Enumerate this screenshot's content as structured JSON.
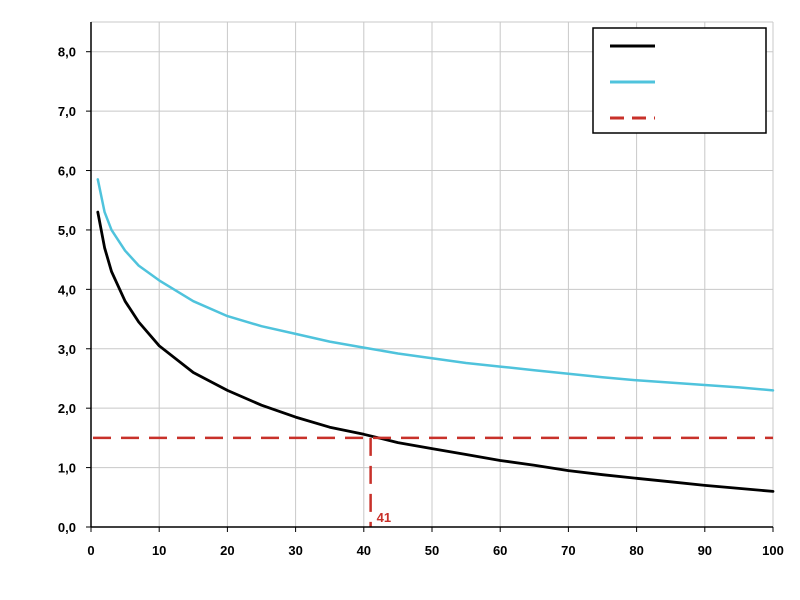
{
  "chart_data": {
    "type": "line",
    "title": "",
    "xlabel": "",
    "ylabel": "",
    "xlim": [
      0,
      100
    ],
    "ylim": [
      0,
      8.5
    ],
    "x_ticks": [
      "0",
      "10",
      "20",
      "30",
      "40",
      "50",
      "60",
      "70",
      "80",
      "90",
      "100"
    ],
    "y_ticks": [
      "0,0",
      "1,0",
      "2,0",
      "3,0",
      "4,0",
      "5,0",
      "6,0",
      "7,0",
      "8,0"
    ],
    "grid": true,
    "legend": {
      "placement": "top-right",
      "entries": [
        "",
        "",
        ""
      ]
    },
    "series": [
      {
        "color": "#000000",
        "x": [
          1,
          2,
          3,
          5,
          7,
          10,
          15,
          20,
          25,
          30,
          35,
          40,
          45,
          50,
          55,
          60,
          65,
          70,
          75,
          80,
          85,
          90,
          95,
          100
        ],
        "y": [
          5.3,
          4.7,
          4.3,
          3.8,
          3.45,
          3.05,
          2.6,
          2.3,
          2.05,
          1.85,
          1.68,
          1.56,
          1.42,
          1.32,
          1.22,
          1.12,
          1.04,
          0.95,
          0.88,
          0.82,
          0.76,
          0.7,
          0.65,
          0.6
        ]
      },
      {
        "color": "#4fc3dc",
        "x": [
          1,
          2,
          3,
          5,
          7,
          10,
          15,
          20,
          25,
          30,
          35,
          40,
          45,
          50,
          55,
          60,
          65,
          70,
          75,
          80,
          85,
          90,
          95,
          100
        ],
        "y": [
          5.85,
          5.3,
          5.0,
          4.65,
          4.4,
          4.15,
          3.8,
          3.55,
          3.38,
          3.25,
          3.12,
          3.02,
          2.92,
          2.84,
          2.76,
          2.7,
          2.64,
          2.58,
          2.52,
          2.47,
          2.43,
          2.39,
          2.35,
          2.3
        ]
      }
    ],
    "reference": {
      "color": "#c8312a",
      "y": 1.5,
      "x": 41,
      "label": "41"
    }
  }
}
